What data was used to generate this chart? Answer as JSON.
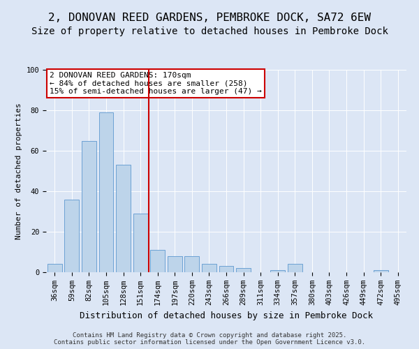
{
  "title1": "2, DONOVAN REED GARDENS, PEMBROKE DOCK, SA72 6EW",
  "title2": "Size of property relative to detached houses in Pembroke Dock",
  "xlabel": "Distribution of detached houses by size in Pembroke Dock",
  "ylabel": "Number of detached properties",
  "categories": [
    "36sqm",
    "59sqm",
    "82sqm",
    "105sqm",
    "128sqm",
    "151sqm",
    "174sqm",
    "197sqm",
    "220sqm",
    "243sqm",
    "266sqm",
    "289sqm",
    "311sqm",
    "334sqm",
    "357sqm",
    "380sqm",
    "403sqm",
    "426sqm",
    "449sqm",
    "472sqm",
    "495sqm"
  ],
  "values": [
    4,
    36,
    65,
    79,
    53,
    29,
    11,
    8,
    8,
    4,
    3,
    2,
    0,
    1,
    4,
    0,
    0,
    0,
    0,
    1,
    0
  ],
  "bar_color": "#bdd4ea",
  "bar_edge_color": "#5e99cf",
  "vline_color": "#cc0000",
  "vline_pos": 6.0,
  "annotation_lines": [
    "2 DONOVAN REED GARDENS: 170sqm",
    "← 84% of detached houses are smaller (258)",
    "15% of semi-detached houses are larger (47) →"
  ],
  "annotation_box_color": "#ffffff",
  "annotation_box_edge": "#cc0000",
  "bg_color": "#dce6f5",
  "plot_bg_color": "#dce6f5",
  "grid_color": "#ffffff",
  "footer": "Contains HM Land Registry data © Crown copyright and database right 2025.\nContains public sector information licensed under the Open Government Licence v3.0.",
  "ylim": [
    0,
    100
  ],
  "title1_fontsize": 11.5,
  "title2_fontsize": 10,
  "tick_fontsize": 7.5,
  "ylabel_fontsize": 8,
  "xlabel_fontsize": 9,
  "annotation_fontsize": 8,
  "footer_fontsize": 6.5
}
